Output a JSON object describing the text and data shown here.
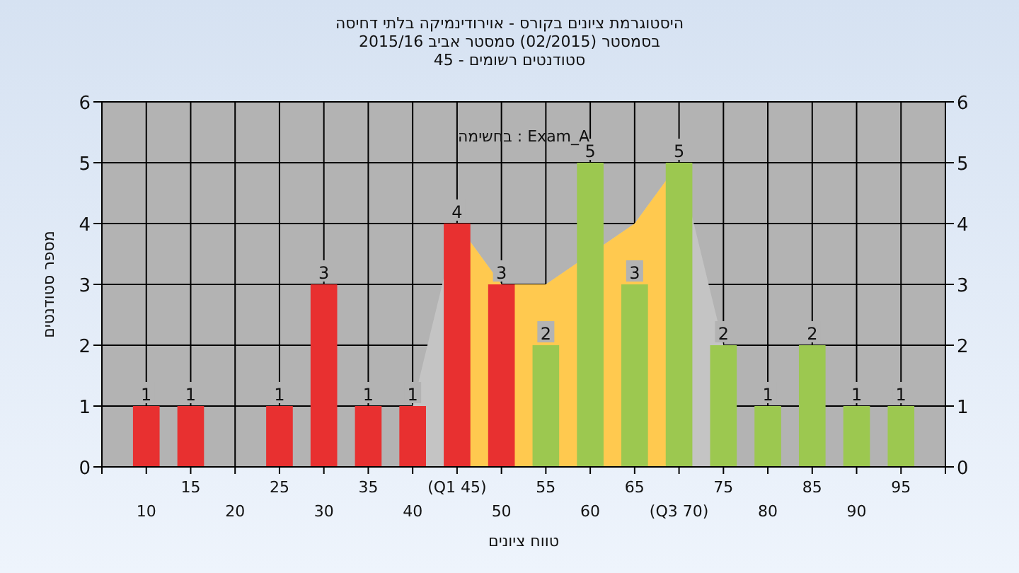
{
  "chart_data": {
    "type": "bar",
    "title": "היסטוגרמת ציונים בקורס - אוירודינמיקה בלתי דחיסה",
    "subtitle": "בסמסטר (02/2015) סמסטר אביב 2015/16\nסטודנטים רשומים - 45",
    "xlabel": "טווח ציונים",
    "ylabel": "מספר סטודנטים",
    "annotations": [
      "בחשימה : Exam_A"
    ],
    "categories": [
      "10",
      "15",
      "20",
      "25",
      "30",
      "35",
      "40",
      "(Q1 45)",
      "50",
      "55",
      "60",
      "65",
      "(Q3 70)",
      "75",
      "80",
      "85",
      "90",
      "95"
    ],
    "series": [
      {
        "type": "area",
        "color": "#c4c4c4",
        "values": [
          null,
          null,
          null,
          null,
          null,
          null,
          1,
          4,
          3,
          3,
          null,
          4,
          5,
          2,
          null,
          null,
          null,
          null
        ]
      },
      {
        "type": "area",
        "color": "#ffc94f",
        "values": [
          null,
          null,
          null,
          null,
          null,
          null,
          null,
          4,
          3,
          3,
          null,
          4,
          5,
          null,
          null,
          null,
          null,
          null
        ]
      },
      {
        "values": [
          1,
          1,
          0,
          1,
          3,
          1,
          1,
          4,
          3,
          2,
          5,
          3,
          5,
          2,
          1,
          2,
          1,
          1
        ],
        "colors": [
          "#e83030",
          "#e83030",
          "#e83030",
          "#e83030",
          "#e83030",
          "#e83030",
          "#e83030",
          "#e83030",
          "#e83030",
          "#9cc850",
          "#9cc850",
          "#9cc850",
          "#9cc850",
          "#9cc850",
          "#9cc850",
          "#9cc850",
          "#9cc850",
          "#9cc850"
        ],
        "value_labels": [
          "1",
          "1",
          null,
          "1",
          "3",
          "1",
          "1",
          "4",
          "3",
          "2",
          "5",
          "3",
          "5",
          "2",
          "1",
          "2",
          "1",
          "1"
        ]
      }
    ],
    "ylim": [
      0,
      6
    ],
    "yticks": [
      0,
      1,
      2,
      3,
      4,
      5,
      6
    ],
    "y2lim": [
      0,
      6
    ],
    "y2ticks": [
      0,
      1,
      2,
      3,
      4,
      5,
      6
    ],
    "grid": true
  }
}
